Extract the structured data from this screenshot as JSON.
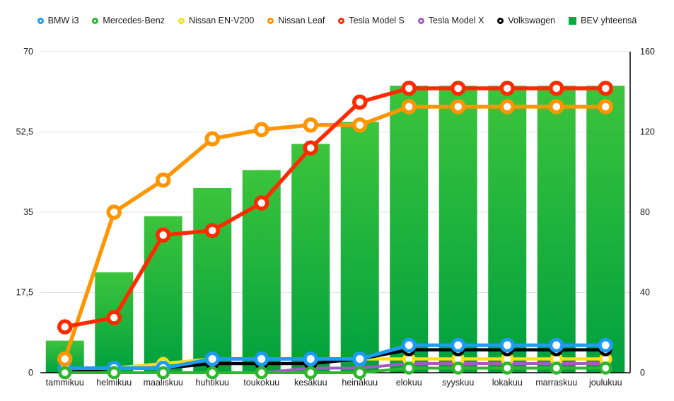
{
  "chart_data": {
    "type": "bar+line combo",
    "categories": [
      "tammikuu",
      "helmikuu",
      "maaliskuu",
      "huhtikuu",
      "toukokuu",
      "kesäkuu",
      "heinäkuu",
      "elokuu",
      "syyskuu",
      "lokakuu",
      "marraskuu",
      "joulukuu"
    ],
    "title": "",
    "xlabel": "",
    "ylabel_left": "",
    "ylabel_right": "",
    "left_axis": {
      "ticks": [
        "0",
        "17,5",
        "35",
        "52,5",
        "70"
      ],
      "values": [
        0,
        17.5,
        35,
        52.5,
        70
      ],
      "ylim": [
        0,
        70
      ]
    },
    "right_axis": {
      "ticks": [
        "0",
        "40",
        "80",
        "120",
        "160"
      ],
      "values": [
        0,
        40,
        80,
        120,
        160
      ],
      "ylim": [
        0,
        160
      ]
    },
    "grid": "horizontal",
    "legend_position": "top-center",
    "bar_series": {
      "name": "BEV yhteensä",
      "axis": "right",
      "marker": "square",
      "color_top": "#3cc43c",
      "color_bottom": "#00a03e",
      "legend_color": "#0aa83f",
      "values": [
        16,
        50,
        78,
        92,
        101,
        114,
        125,
        143,
        143,
        143,
        143,
        143
      ]
    },
    "line_series": [
      {
        "name": "BMW i3",
        "axis": "left",
        "marker": "ring",
        "color": "#1e9bf5",
        "line_width": 5,
        "marker_r": 8,
        "marker_stroke": 5,
        "values": [
          1,
          1,
          1,
          3,
          3,
          3,
          3,
          6,
          6,
          6,
          6,
          6
        ]
      },
      {
        "name": "Mercedes-Benz",
        "axis": "left",
        "marker": "ring",
        "color": "#2eb62e",
        "line_width": 4,
        "marker_r": 7,
        "marker_stroke": 4.5,
        "values": [
          0,
          0,
          0,
          0,
          0,
          0,
          0,
          1,
          1,
          1,
          1,
          1
        ]
      },
      {
        "name": "Nissan EN-V200",
        "axis": "left",
        "marker": "ring",
        "color": "#f7e017",
        "line_width": 4.5,
        "marker_r": 7,
        "marker_stroke": 4.5,
        "values": [
          1,
          1,
          2,
          3,
          3,
          3,
          3,
          3,
          3,
          3,
          3,
          3
        ]
      },
      {
        "name": "Nissan Leaf",
        "axis": "left",
        "marker": "ring",
        "color": "#ff9500",
        "line_width": 5.5,
        "marker_r": 8,
        "marker_stroke": 5.5,
        "values": [
          3,
          35,
          42,
          51,
          53,
          54,
          54,
          58,
          58,
          58,
          58,
          58
        ]
      },
      {
        "name": "Tesla Model S",
        "axis": "left",
        "marker": "ring",
        "color": "#ff2b00",
        "line_width": 5.5,
        "marker_r": 8,
        "marker_stroke": 5.5,
        "values": [
          10,
          12,
          30,
          31,
          37,
          49,
          59,
          62,
          62,
          62,
          62,
          62
        ]
      },
      {
        "name": "Tesla Model X",
        "axis": "left",
        "marker": "ring",
        "color": "#a55ac3",
        "line_width": 4,
        "marker_r": 6,
        "marker_stroke": 4,
        "values": [
          0,
          0,
          0,
          0,
          0,
          1,
          1,
          2,
          2,
          2,
          2,
          2
        ]
      },
      {
        "name": "Volkswagen",
        "axis": "left",
        "marker": "ring",
        "color": "#000000",
        "line_width": 4.5,
        "marker_r": 7,
        "marker_stroke": 4.5,
        "values": [
          0,
          1,
          1,
          2,
          2,
          2,
          3,
          5,
          5,
          5,
          5,
          5
        ]
      }
    ],
    "draw_order": [
      "Tesla Model X",
      "Nissan EN-V200",
      "Volkswagen",
      "BMW i3",
      "Mercedes-Benz",
      "Nissan Leaf",
      "Tesla Model S"
    ],
    "legend_order": [
      "BMW i3",
      "Mercedes-Benz",
      "Nissan EN-V200",
      "Nissan Leaf",
      "Tesla Model S",
      "Tesla Model X",
      "Volkswagen",
      "BEV yhteensä"
    ]
  },
  "colors": {
    "grid": "#e3e3e3",
    "axis_line": "#000000",
    "tick_text": "#1a1a1a",
    "background": "#ffffff"
  }
}
